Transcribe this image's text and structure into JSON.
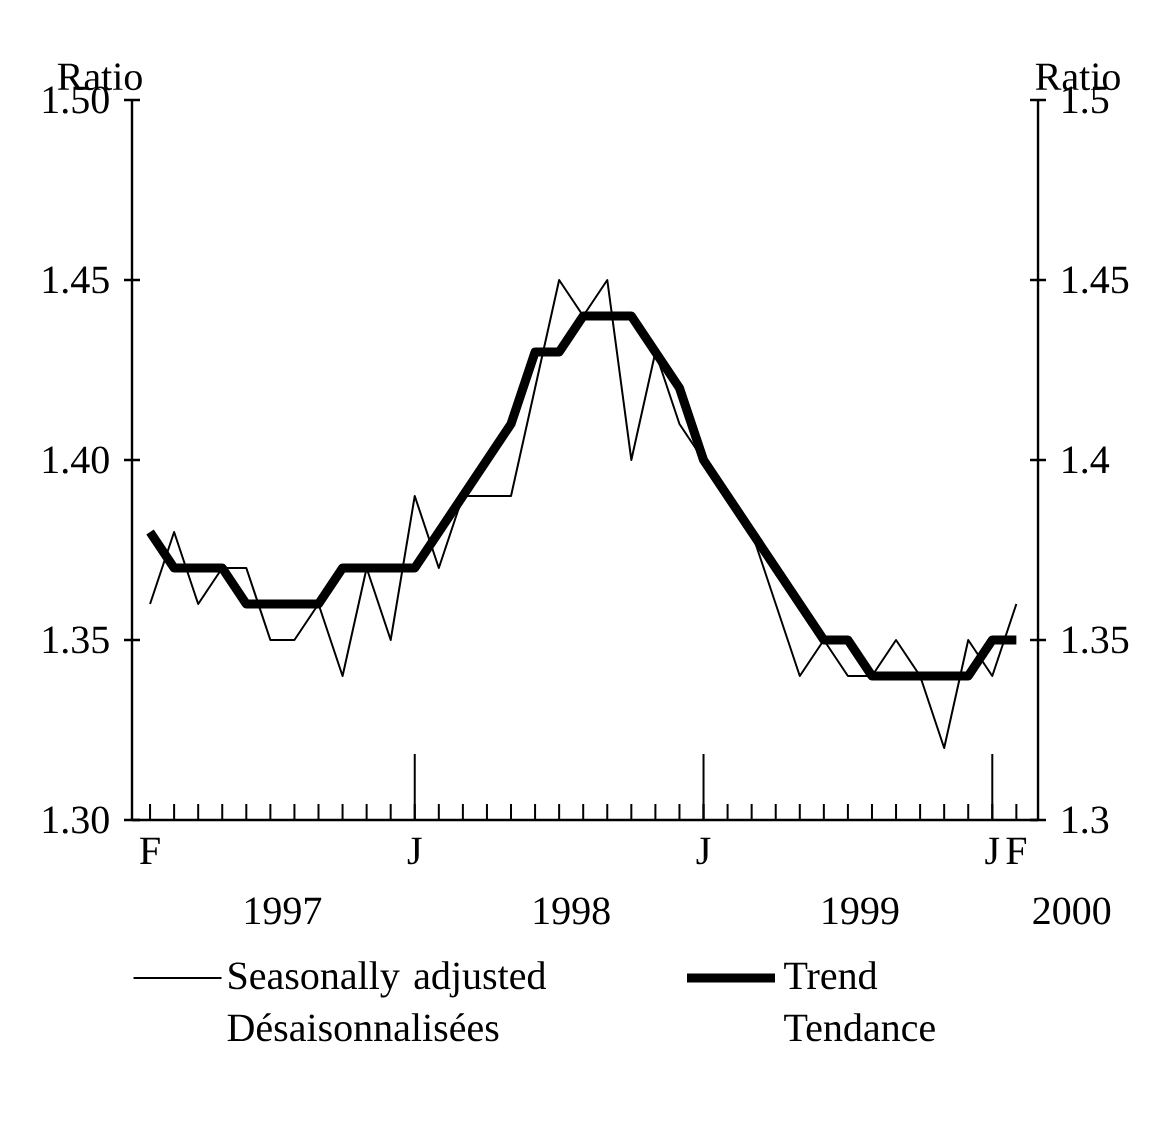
{
  "chart_data": {
    "type": "line",
    "ylabel": "Ratio",
    "y2label": "Ratio",
    "categories": [
      "F",
      null,
      null,
      null,
      null,
      null,
      null,
      null,
      null,
      null,
      null,
      "J",
      null,
      null,
      null,
      null,
      null,
      null,
      null,
      null,
      null,
      null,
      null,
      "J",
      null,
      null,
      null,
      null,
      null,
      null,
      null,
      null,
      null,
      null,
      null,
      "J",
      "F"
    ],
    "ylim": [
      1.3,
      1.5
    ],
    "yticks": [
      {
        "value": 1.3,
        "label": "1.30"
      },
      1.35,
      {
        "value": 1.4,
        "label": "1.40"
      },
      1.45,
      {
        "value": 1.5,
        "label": "1.50"
      }
    ],
    "y2lim": [
      1.3,
      1.5
    ],
    "y2ticks": [
      {
        "value": 1.3,
        "label": "1.3"
      },
      1.35,
      {
        "value": 1.4,
        "label": "1.4"
      },
      1.45,
      {
        "value": 1.5,
        "label": "1.5"
      }
    ],
    "series": [
      {
        "name": "Seasonally adjusted Désaisonnalisées",
        "color": "#000000",
        "values": [
          1.36,
          1.38,
          1.36,
          1.37,
          1.37,
          1.35,
          1.35,
          1.36,
          1.34,
          1.37,
          1.35,
          1.39,
          1.37,
          1.39,
          1.39,
          1.39,
          1.42,
          1.45,
          1.44,
          1.45,
          1.4,
          1.43,
          1.41,
          1.4,
          1.39,
          1.38,
          1.36,
          1.34,
          1.35,
          1.34,
          1.34,
          1.35,
          1.34,
          1.32,
          1.35,
          1.34,
          1.36
        ]
      },
      {
        "name": "Trend Tendance",
        "color": "#000000",
        "values": [
          1.38,
          1.37,
          1.37,
          1.37,
          1.36,
          1.36,
          1.36,
          1.36,
          1.37,
          1.37,
          1.37,
          1.37,
          1.38,
          1.39,
          1.4,
          1.41,
          1.43,
          1.43,
          1.44,
          1.44,
          1.44,
          1.43,
          1.42,
          1.4,
          1.39,
          1.38,
          1.37,
          1.36,
          1.35,
          1.35,
          1.34,
          1.34,
          1.34,
          1.34,
          1.34,
          1.35,
          1.35
        ]
      }
    ],
    "legend": "bottom",
    "annotations": [
      "1997",
      "1998",
      "1999",
      "2000"
    ]
  }
}
